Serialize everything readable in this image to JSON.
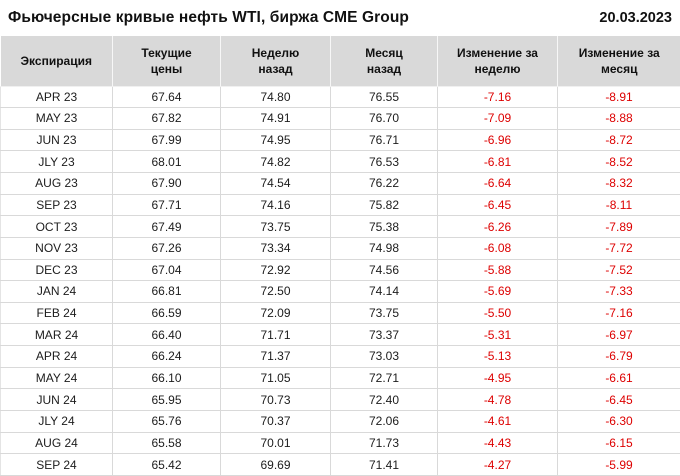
{
  "meta": {
    "title": "Фьючерсные кривые нефть WTI, биржа CME Group",
    "date": "20.03.2023"
  },
  "colors": {
    "negative": "#dd0000",
    "header_bg": "#d9d9d9",
    "grid": "#d9d9d9"
  },
  "table": {
    "columns": [
      {
        "key": "expiration",
        "label": "Экспирация"
      },
      {
        "key": "current",
        "label": "Текущие\nцены"
      },
      {
        "key": "week_ago",
        "label": "Неделю\nназад"
      },
      {
        "key": "month_ago",
        "label": "Месяц\nназад"
      },
      {
        "key": "change_week",
        "label": "Изменение за\nнеделю"
      },
      {
        "key": "change_month",
        "label": "Изменение за\nмесяц"
      }
    ],
    "rows": [
      {
        "expiration": "APR 23",
        "current": "67.64",
        "week_ago": "74.80",
        "month_ago": "76.55",
        "change_week": "-7.16",
        "change_month": "-8.91"
      },
      {
        "expiration": "MAY 23",
        "current": "67.82",
        "week_ago": "74.91",
        "month_ago": "76.70",
        "change_week": "-7.09",
        "change_month": "-8.88"
      },
      {
        "expiration": "JUN 23",
        "current": "67.99",
        "week_ago": "74.95",
        "month_ago": "76.71",
        "change_week": "-6.96",
        "change_month": "-8.72"
      },
      {
        "expiration": "JLY 23",
        "current": "68.01",
        "week_ago": "74.82",
        "month_ago": "76.53",
        "change_week": "-6.81",
        "change_month": "-8.52"
      },
      {
        "expiration": "AUG 23",
        "current": "67.90",
        "week_ago": "74.54",
        "month_ago": "76.22",
        "change_week": "-6.64",
        "change_month": "-8.32"
      },
      {
        "expiration": "SEP 23",
        "current": "67.71",
        "week_ago": "74.16",
        "month_ago": "75.82",
        "change_week": "-6.45",
        "change_month": "-8.11"
      },
      {
        "expiration": "OCT 23",
        "current": "67.49",
        "week_ago": "73.75",
        "month_ago": "75.38",
        "change_week": "-6.26",
        "change_month": "-7.89"
      },
      {
        "expiration": "NOV 23",
        "current": "67.26",
        "week_ago": "73.34",
        "month_ago": "74.98",
        "change_week": "-6.08",
        "change_month": "-7.72"
      },
      {
        "expiration": "DEC 23",
        "current": "67.04",
        "week_ago": "72.92",
        "month_ago": "74.56",
        "change_week": "-5.88",
        "change_month": "-7.52"
      },
      {
        "expiration": "JAN 24",
        "current": "66.81",
        "week_ago": "72.50",
        "month_ago": "74.14",
        "change_week": "-5.69",
        "change_month": "-7.33"
      },
      {
        "expiration": "FEB 24",
        "current": "66.59",
        "week_ago": "72.09",
        "month_ago": "73.75",
        "change_week": "-5.50",
        "change_month": "-7.16"
      },
      {
        "expiration": "MAR 24",
        "current": "66.40",
        "week_ago": "71.71",
        "month_ago": "73.37",
        "change_week": "-5.31",
        "change_month": "-6.97"
      },
      {
        "expiration": "APR 24",
        "current": "66.24",
        "week_ago": "71.37",
        "month_ago": "73.03",
        "change_week": "-5.13",
        "change_month": "-6.79"
      },
      {
        "expiration": "MAY 24",
        "current": "66.10",
        "week_ago": "71.05",
        "month_ago": "72.71",
        "change_week": "-4.95",
        "change_month": "-6.61"
      },
      {
        "expiration": "JUN 24",
        "current": "65.95",
        "week_ago": "70.73",
        "month_ago": "72.40",
        "change_week": "-4.78",
        "change_month": "-6.45"
      },
      {
        "expiration": "JLY 24",
        "current": "65.76",
        "week_ago": "70.37",
        "month_ago": "72.06",
        "change_week": "-4.61",
        "change_month": "-6.30"
      },
      {
        "expiration": "AUG 24",
        "current": "65.58",
        "week_ago": "70.01",
        "month_ago": "71.73",
        "change_week": "-4.43",
        "change_month": "-6.15"
      },
      {
        "expiration": "SEP 24",
        "current": "65.42",
        "week_ago": "69.69",
        "month_ago": "71.41",
        "change_week": "-4.27",
        "change_month": "-5.99"
      }
    ]
  },
  "chart_data": {
    "type": "table",
    "title": "Фьючерсные кривые нефть WTI, биржа CME Group",
    "date": "20.03.2023",
    "columns": [
      "Экспирация",
      "Текущие цены",
      "Неделю назад",
      "Месяц назад",
      "Изменение за неделю",
      "Изменение за месяц"
    ],
    "rows": [
      [
        "APR 23",
        67.64,
        74.8,
        76.55,
        -7.16,
        -8.91
      ],
      [
        "MAY 23",
        67.82,
        74.91,
        76.7,
        -7.09,
        -8.88
      ],
      [
        "JUN 23",
        67.99,
        74.95,
        76.71,
        -6.96,
        -8.72
      ],
      [
        "JLY 23",
        68.01,
        74.82,
        76.53,
        -6.81,
        -8.52
      ],
      [
        "AUG 23",
        67.9,
        74.54,
        76.22,
        -6.64,
        -8.32
      ],
      [
        "SEP 23",
        67.71,
        74.16,
        75.82,
        -6.45,
        -8.11
      ],
      [
        "OCT 23",
        67.49,
        73.75,
        75.38,
        -6.26,
        -7.89
      ],
      [
        "NOV 23",
        67.26,
        73.34,
        74.98,
        -6.08,
        -7.72
      ],
      [
        "DEC 23",
        67.04,
        72.92,
        74.56,
        -5.88,
        -7.52
      ],
      [
        "JAN 24",
        66.81,
        72.5,
        74.14,
        -5.69,
        -7.33
      ],
      [
        "FEB 24",
        66.59,
        72.09,
        73.75,
        -5.5,
        -7.16
      ],
      [
        "MAR 24",
        66.4,
        71.71,
        73.37,
        -5.31,
        -6.97
      ],
      [
        "APR 24",
        66.24,
        71.37,
        73.03,
        -5.13,
        -6.79
      ],
      [
        "MAY 24",
        66.1,
        71.05,
        72.71,
        -4.95,
        -6.61
      ],
      [
        "JUN 24",
        65.95,
        70.73,
        72.4,
        -4.78,
        -6.45
      ],
      [
        "JLY 24",
        65.76,
        70.37,
        72.06,
        -4.61,
        -6.3
      ],
      [
        "AUG 24",
        65.58,
        70.01,
        71.73,
        -4.43,
        -6.15
      ],
      [
        "SEP 24",
        65.42,
        69.69,
        71.41,
        -4.27,
        -5.99
      ]
    ]
  }
}
